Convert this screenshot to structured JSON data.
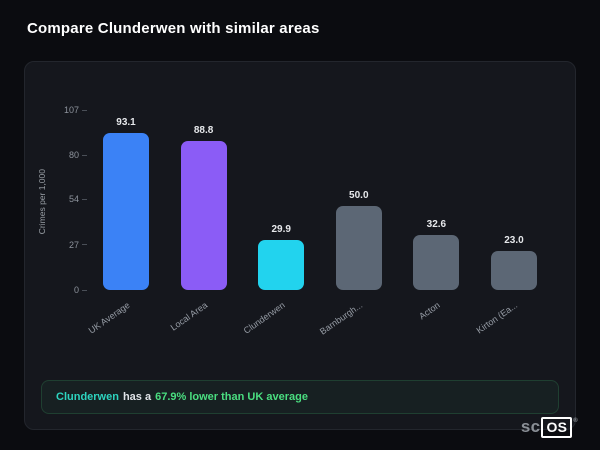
{
  "title": "Compare Clunderwen with similar areas",
  "chart_data": {
    "type": "bar",
    "categories": [
      "UK Average",
      "Local Area",
      "Clunderwen",
      "Barnburgh...",
      "Acton",
      "Kirton (Ea..."
    ],
    "values": [
      93.1,
      88.8,
      29.9,
      50.0,
      32.6,
      23.0
    ],
    "value_labels": [
      "93.1",
      "88.8",
      "29.9",
      "50.0",
      "32.6",
      "23.0"
    ],
    "bar_colors": [
      "#3b82f6",
      "#8b5cf6",
      "#22d3ee",
      "#5c6775",
      "#5c6775",
      "#5c6775"
    ],
    "title": "",
    "xlabel": "",
    "ylabel": "Crimes per 1,000",
    "yticks": [
      0,
      27,
      54,
      80,
      107
    ],
    "ylim": [
      0,
      107
    ],
    "grid": false,
    "legend": false
  },
  "summary": {
    "area": "Clunderwen",
    "mid": "has a",
    "stat": "67.9% lower than UK average"
  },
  "brand": {
    "prefix": "sc",
    "suffix": "OS",
    "reg": "®"
  }
}
